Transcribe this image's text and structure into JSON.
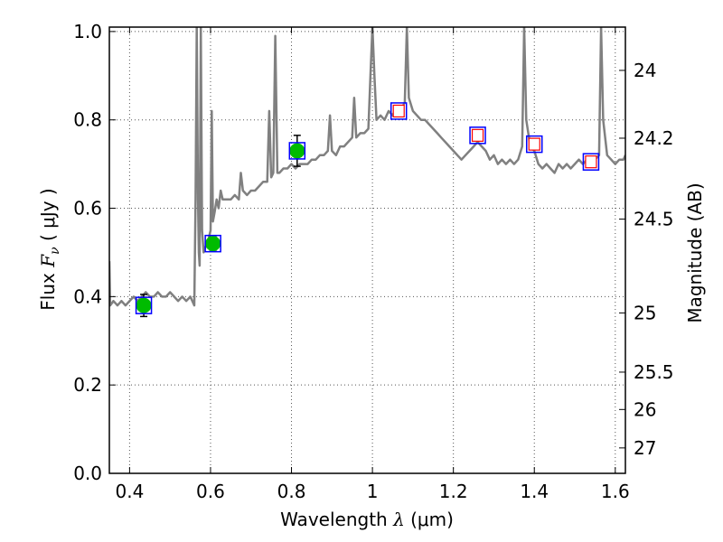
{
  "chart_data": {
    "type": "line",
    "xlabel": {
      "prefix": "Wavelength  ",
      "symbol": "λ",
      "unit": " (μm)"
    },
    "ylabel": {
      "prefix": "Flux  ",
      "symbol": "F",
      "subscript": "ν",
      "unit": "  ( μJy )"
    },
    "right_label": "Magnitude (AB)",
    "xlim": [
      0.35,
      1.625
    ],
    "ylim": [
      0.0,
      1.01
    ],
    "x_ticks": [
      0.4,
      0.6,
      0.8,
      1.0,
      1.2,
      1.4,
      1.6
    ],
    "x_tick_labels": [
      "0.4",
      "0.6",
      "0.8",
      "1",
      "1.2",
      "1.4",
      "1.6"
    ],
    "y_ticks": [
      0.0,
      0.2,
      0.4,
      0.6,
      0.8,
      1.0
    ],
    "y_tick_labels": [
      "0.0",
      "0.2",
      "0.4",
      "0.6",
      "0.8",
      "1.0"
    ],
    "right_ticks": [
      {
        "label": "24",
        "mag": 24.0
      },
      {
        "label": "24.2",
        "mag": 24.2
      },
      {
        "label": "24.5",
        "mag": 24.5
      },
      {
        "label": "25",
        "mag": 25.0
      },
      {
        "label": "25.5",
        "mag": 25.5
      },
      {
        "label": "26",
        "mag": 26.0
      },
      {
        "label": "27",
        "mag": 27.0
      }
    ],
    "grid": true,
    "colors": {
      "model": "#808080",
      "observed": "#00bb00",
      "box_outer": "#0000ff",
      "box_inner": "#ff0000",
      "grid": "#555555"
    },
    "series": [
      {
        "name": "model_spectrum",
        "kind": "line",
        "points": [
          [
            0.35,
            0.48
          ],
          [
            0.352,
            0.38
          ],
          [
            0.36,
            0.39
          ],
          [
            0.37,
            0.38
          ],
          [
            0.38,
            0.39
          ],
          [
            0.39,
            0.38
          ],
          [
            0.4,
            0.39
          ],
          [
            0.41,
            0.4
          ],
          [
            0.42,
            0.39
          ],
          [
            0.43,
            0.4
          ],
          [
            0.44,
            0.41
          ],
          [
            0.45,
            0.4
          ],
          [
            0.46,
            0.4
          ],
          [
            0.47,
            0.41
          ],
          [
            0.48,
            0.4
          ],
          [
            0.49,
            0.4
          ],
          [
            0.5,
            0.41
          ],
          [
            0.51,
            0.4
          ],
          [
            0.52,
            0.39
          ],
          [
            0.53,
            0.4
          ],
          [
            0.54,
            0.39
          ],
          [
            0.55,
            0.4
          ],
          [
            0.555,
            0.39
          ],
          [
            0.56,
            0.38
          ],
          [
            0.563,
            0.62
          ],
          [
            0.566,
            1.01
          ],
          [
            0.569,
            0.62
          ],
          [
            0.571,
            0.5
          ],
          [
            0.573,
            0.47
          ],
          [
            0.576,
            1.01
          ],
          [
            0.579,
            0.55
          ],
          [
            0.583,
            0.5
          ],
          [
            0.59,
            0.52
          ],
          [
            0.595,
            0.53
          ],
          [
            0.6,
            0.55
          ],
          [
            0.603,
            0.82
          ],
          [
            0.606,
            0.57
          ],
          [
            0.61,
            0.59
          ],
          [
            0.615,
            0.62
          ],
          [
            0.62,
            0.6
          ],
          [
            0.625,
            0.64
          ],
          [
            0.63,
            0.62
          ],
          [
            0.64,
            0.62
          ],
          [
            0.65,
            0.62
          ],
          [
            0.66,
            0.63
          ],
          [
            0.67,
            0.62
          ],
          [
            0.675,
            0.68
          ],
          [
            0.68,
            0.64
          ],
          [
            0.69,
            0.63
          ],
          [
            0.7,
            0.64
          ],
          [
            0.71,
            0.64
          ],
          [
            0.72,
            0.65
          ],
          [
            0.73,
            0.66
          ],
          [
            0.74,
            0.66
          ],
          [
            0.745,
            0.82
          ],
          [
            0.75,
            0.67
          ],
          [
            0.755,
            0.68
          ],
          [
            0.76,
            0.99
          ],
          [
            0.765,
            0.68
          ],
          [
            0.77,
            0.68
          ],
          [
            0.78,
            0.69
          ],
          [
            0.79,
            0.69
          ],
          [
            0.8,
            0.7
          ],
          [
            0.81,
            0.69
          ],
          [
            0.82,
            0.7
          ],
          [
            0.83,
            0.7
          ],
          [
            0.84,
            0.7
          ],
          [
            0.85,
            0.71
          ],
          [
            0.86,
            0.71
          ],
          [
            0.87,
            0.72
          ],
          [
            0.88,
            0.72
          ],
          [
            0.89,
            0.73
          ],
          [
            0.895,
            0.81
          ],
          [
            0.9,
            0.73
          ],
          [
            0.91,
            0.72
          ],
          [
            0.92,
            0.74
          ],
          [
            0.93,
            0.74
          ],
          [
            0.94,
            0.75
          ],
          [
            0.95,
            0.76
          ],
          [
            0.955,
            0.85
          ],
          [
            0.96,
            0.76
          ],
          [
            0.97,
            0.77
          ],
          [
            0.98,
            0.77
          ],
          [
            0.99,
            0.78
          ],
          [
            0.995,
            0.9
          ],
          [
            1.0,
            1.01
          ],
          [
            1.005,
            0.9
          ],
          [
            1.01,
            0.8
          ],
          [
            1.02,
            0.81
          ],
          [
            1.03,
            0.8
          ],
          [
            1.04,
            0.82
          ],
          [
            1.05,
            0.81
          ],
          [
            1.06,
            0.83
          ],
          [
            1.07,
            0.82
          ],
          [
            1.08,
            0.84
          ],
          [
            1.085,
            1.01
          ],
          [
            1.09,
            0.85
          ],
          [
            1.1,
            0.82
          ],
          [
            1.11,
            0.81
          ],
          [
            1.12,
            0.8
          ],
          [
            1.13,
            0.8
          ],
          [
            1.14,
            0.79
          ],
          [
            1.15,
            0.78
          ],
          [
            1.16,
            0.77
          ],
          [
            1.17,
            0.76
          ],
          [
            1.18,
            0.75
          ],
          [
            1.19,
            0.74
          ],
          [
            1.2,
            0.73
          ],
          [
            1.21,
            0.72
          ],
          [
            1.22,
            0.71
          ],
          [
            1.23,
            0.72
          ],
          [
            1.24,
            0.73
          ],
          [
            1.25,
            0.74
          ],
          [
            1.26,
            0.75
          ],
          [
            1.27,
            0.74
          ],
          [
            1.28,
            0.73
          ],
          [
            1.29,
            0.71
          ],
          [
            1.3,
            0.72
          ],
          [
            1.31,
            0.7
          ],
          [
            1.32,
            0.71
          ],
          [
            1.33,
            0.7
          ],
          [
            1.34,
            0.71
          ],
          [
            1.35,
            0.7
          ],
          [
            1.36,
            0.71
          ],
          [
            1.37,
            0.74
          ],
          [
            1.375,
            1.01
          ],
          [
            1.38,
            0.8
          ],
          [
            1.39,
            0.74
          ],
          [
            1.4,
            0.73
          ],
          [
            1.41,
            0.7
          ],
          [
            1.42,
            0.69
          ],
          [
            1.43,
            0.7
          ],
          [
            1.44,
            0.69
          ],
          [
            1.45,
            0.68
          ],
          [
            1.46,
            0.7
          ],
          [
            1.47,
            0.69
          ],
          [
            1.48,
            0.7
          ],
          [
            1.49,
            0.69
          ],
          [
            1.5,
            0.7
          ],
          [
            1.51,
            0.71
          ],
          [
            1.52,
            0.7
          ],
          [
            1.53,
            0.71
          ],
          [
            1.54,
            0.7
          ],
          [
            1.55,
            0.71
          ],
          [
            1.56,
            0.72
          ],
          [
            1.565,
            1.01
          ],
          [
            1.57,
            0.8
          ],
          [
            1.58,
            0.72
          ],
          [
            1.59,
            0.71
          ],
          [
            1.6,
            0.7
          ],
          [
            1.61,
            0.71
          ],
          [
            1.62,
            0.71
          ],
          [
            1.625,
            0.72
          ]
        ]
      },
      {
        "name": "observed_photometry",
        "kind": "scatter_errorbar",
        "points": [
          {
            "x": 0.435,
            "y": 0.38,
            "err": 0.025
          },
          {
            "x": 0.606,
            "y": 0.52,
            "err": 0.015
          },
          {
            "x": 0.814,
            "y": 0.73,
            "err": 0.035
          }
        ]
      },
      {
        "name": "model_band_flux",
        "kind": "boxes",
        "points": [
          {
            "x": 0.435,
            "y": 0.38,
            "filled": false
          },
          {
            "x": 0.606,
            "y": 0.52,
            "filled": false
          },
          {
            "x": 0.814,
            "y": 0.73,
            "filled": false
          },
          {
            "x": 1.065,
            "y": 0.82,
            "filled": true
          },
          {
            "x": 1.26,
            "y": 0.765,
            "filled": true
          },
          {
            "x": 1.4,
            "y": 0.745,
            "filled": true
          },
          {
            "x": 1.54,
            "y": 0.705,
            "filled": true
          }
        ]
      }
    ]
  }
}
